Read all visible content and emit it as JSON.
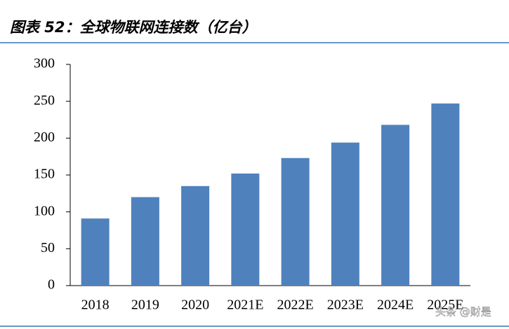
{
  "chart_data": {
    "type": "bar",
    "title": "图表 52：全球物联网连接数（亿台）",
    "categories": [
      "2018",
      "2019",
      "2020",
      "2021E",
      "2022E",
      "2023E",
      "2024E",
      "2025E"
    ],
    "values": [
      91,
      120,
      135,
      152,
      173,
      194,
      218,
      247
    ],
    "color": "#4f81bd",
    "ylim": [
      0,
      300
    ],
    "yticks": [
      0,
      50,
      100,
      150,
      200,
      250,
      300
    ],
    "grid": false,
    "watermark": "头条 @财是"
  }
}
